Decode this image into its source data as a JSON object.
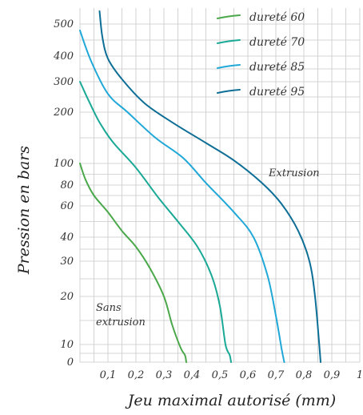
{
  "chart_data": {
    "type": "line",
    "title": "",
    "xlabel": "Jeu maximal autorisé (mm)",
    "ylabel": "Pression en bars",
    "xlim": [
      0,
      1
    ],
    "x_ticks": [
      {
        "value": 0.1,
        "label": "0,1"
      },
      {
        "value": 0.2,
        "label": "0,2"
      },
      {
        "value": 0.3,
        "label": "0,3"
      },
      {
        "value": 0.4,
        "label": "0,4"
      },
      {
        "value": 0.5,
        "label": "0,5"
      },
      {
        "value": 0.6,
        "label": "0,6"
      },
      {
        "value": 0.7,
        "label": "0,7"
      },
      {
        "value": 0.8,
        "label": "0,8"
      },
      {
        "value": 0.9,
        "label": "0,9"
      },
      {
        "value": 1.0,
        "label": "1"
      }
    ],
    "y_ticks": [
      {
        "value": 0,
        "label": "0"
      },
      {
        "value": 10,
        "label": "10"
      },
      {
        "value": 20,
        "label": "20"
      },
      {
        "value": 30,
        "label": "30"
      },
      {
        "value": 40,
        "label": "40"
      },
      {
        "value": 60,
        "label": "60"
      },
      {
        "value": 80,
        "label": "80"
      },
      {
        "value": 100,
        "label": "100"
      },
      {
        "value": 200,
        "label": "200"
      },
      {
        "value": 300,
        "label": "300"
      },
      {
        "value": 400,
        "label": "400"
      },
      {
        "value": 500,
        "label": "500"
      }
    ],
    "grid": true,
    "legend_position": "top-right",
    "annotations": [
      "Extrusion",
      "Sans extrusion"
    ],
    "series": [
      {
        "name": "dureté 60",
        "color": "#4aa84a",
        "points": [
          [
            0,
            100
          ],
          [
            0.02,
            85
          ],
          [
            0.05,
            70
          ],
          [
            0.1,
            56
          ],
          [
            0.15,
            44
          ],
          [
            0.2,
            36
          ],
          [
            0.25,
            28
          ],
          [
            0.3,
            20
          ],
          [
            0.33,
            14
          ],
          [
            0.36,
            8
          ],
          [
            0.375,
            4
          ],
          [
            0.38,
            0
          ]
        ]
      },
      {
        "name": "dureté 70",
        "color": "#1aa996",
        "points": [
          [
            0,
            300
          ],
          [
            0.03,
            240
          ],
          [
            0.07,
            180
          ],
          [
            0.12,
            140
          ],
          [
            0.2,
            96
          ],
          [
            0.28,
            68
          ],
          [
            0.35,
            50
          ],
          [
            0.42,
            36
          ],
          [
            0.47,
            26
          ],
          [
            0.5,
            18
          ],
          [
            0.52,
            10
          ],
          [
            0.535,
            4
          ],
          [
            0.54,
            0
          ]
        ]
      },
      {
        "name": "dureté 85",
        "color": "#20a8d8",
        "points": [
          [
            0,
            480
          ],
          [
            0.04,
            380
          ],
          [
            0.1,
            260
          ],
          [
            0.17,
            200
          ],
          [
            0.27,
            150
          ],
          [
            0.37,
            110
          ],
          [
            0.45,
            82
          ],
          [
            0.55,
            56
          ],
          [
            0.62,
            40
          ],
          [
            0.67,
            26
          ],
          [
            0.7,
            16
          ],
          [
            0.72,
            8
          ],
          [
            0.73,
            0
          ]
        ]
      },
      {
        "name": "dureté 95",
        "color": "#0d6e96",
        "points": [
          [
            0.07,
            540
          ],
          [
            0.08,
            460
          ],
          [
            0.1,
            390
          ],
          [
            0.15,
            310
          ],
          [
            0.23,
            230
          ],
          [
            0.33,
            180
          ],
          [
            0.45,
            140
          ],
          [
            0.55,
            106
          ],
          [
            0.65,
            82
          ],
          [
            0.72,
            62
          ],
          [
            0.78,
            44
          ],
          [
            0.82,
            30
          ],
          [
            0.84,
            20
          ],
          [
            0.855,
            10
          ],
          [
            0.86,
            0
          ]
        ]
      }
    ]
  }
}
